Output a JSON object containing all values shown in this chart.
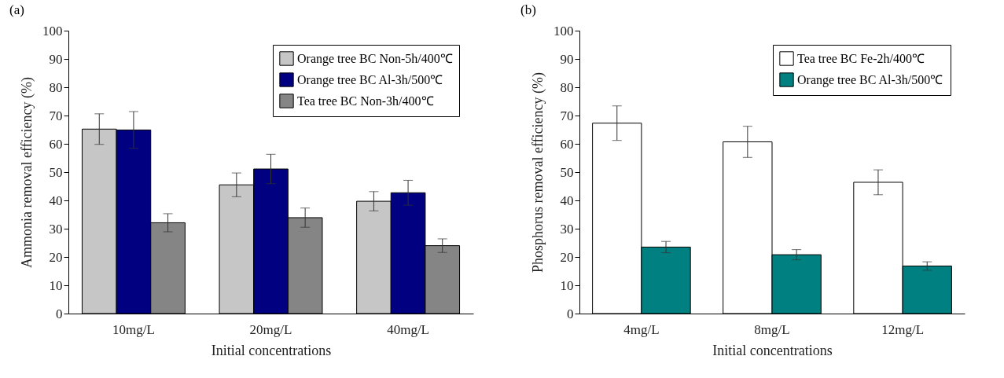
{
  "chart_data": [
    {
      "type": "bar",
      "title": "(a)",
      "xlabel": "Initial concentrations",
      "ylabel": "Ammonia removal efficiency (%)",
      "categories": [
        "10mg/L",
        "20mg/L",
        "40mg/L"
      ],
      "ylim": [
        0,
        100
      ],
      "yticks": [
        0,
        10,
        20,
        30,
        40,
        50,
        60,
        70,
        80,
        90,
        100
      ],
      "legend": "top right",
      "series": [
        {
          "name": "Orange tree BC Non-5h/400℃",
          "color": "#c6c6c6",
          "values": [
            65.2,
            45.5,
            39.7
          ],
          "errors": [
            5.4,
            4.2,
            3.4
          ]
        },
        {
          "name": "Orange tree BC Al-3h/500℃",
          "color": "#000080",
          "values": [
            64.9,
            51.1,
            42.7
          ],
          "errors": [
            6.5,
            5.2,
            4.4
          ]
        },
        {
          "name": "Tea tree BC Non-3h/400℃",
          "color": "#858585",
          "values": [
            32.1,
            33.9,
            24.0
          ],
          "errors": [
            3.2,
            3.4,
            2.4
          ]
        }
      ]
    },
    {
      "type": "bar",
      "title": "(b)",
      "xlabel": "Initial concentrations",
      "ylabel": "Phosphorus removal efficiency (%)",
      "categories": [
        "4mg/L",
        "8mg/L",
        "12mg/L"
      ],
      "ylim": [
        0,
        100
      ],
      "yticks": [
        0,
        10,
        20,
        30,
        40,
        50,
        60,
        70,
        80,
        90,
        100
      ],
      "legend": "top right",
      "series": [
        {
          "name": "Tea tree BC Fe-2h/400℃",
          "color": "#ffffff",
          "values": [
            67.3,
            60.7,
            46.4
          ],
          "errors": [
            6.1,
            5.5,
            4.4
          ]
        },
        {
          "name": "Orange tree BC Al-3h/500℃",
          "color": "#008080",
          "values": [
            23.5,
            20.8,
            16.8
          ],
          "errors": [
            2.0,
            1.8,
            1.5
          ]
        }
      ]
    }
  ]
}
